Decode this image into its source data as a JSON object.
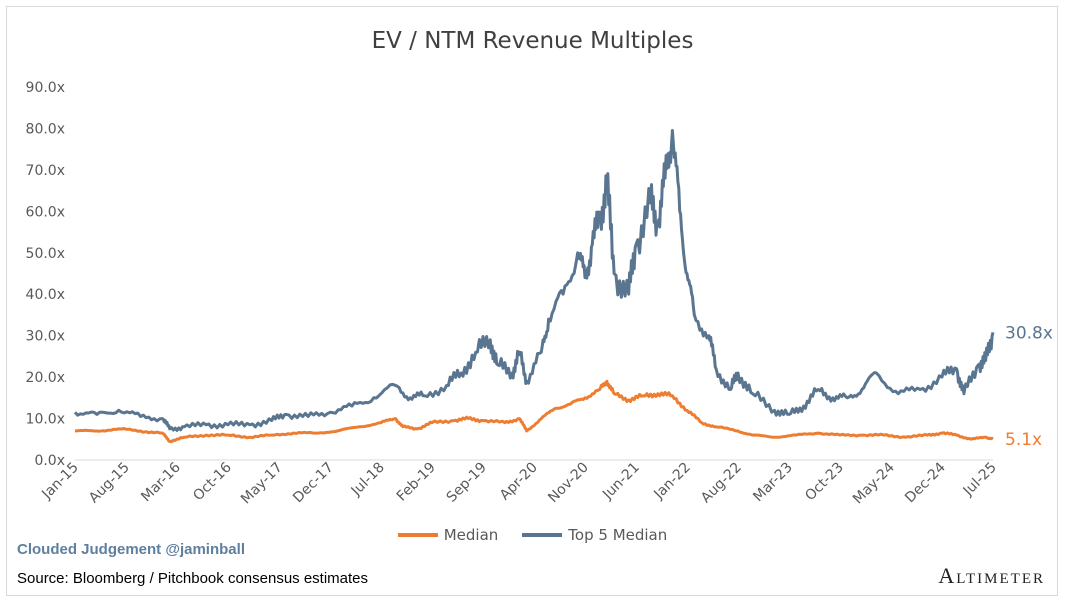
{
  "chart_data": {
    "type": "line",
    "title": "EV / NTM Revenue Multiples",
    "ylim": [
      0,
      90
    ],
    "yticks": [
      "0.0x",
      "10.0x",
      "20.0x",
      "30.0x",
      "40.0x",
      "50.0x",
      "60.0x",
      "70.0x",
      "80.0x",
      "90.0x"
    ],
    "xticks": [
      "Jan-15",
      "Aug-15",
      "Mar-16",
      "Oct-16",
      "May-17",
      "Dec-17",
      "Jul-18",
      "Feb-19",
      "Sep-19",
      "Apr-20",
      "Nov-20",
      "Jun-21",
      "Jan-22",
      "Aug-22",
      "Mar-23",
      "Oct-23",
      "May-24",
      "Dec-24",
      "Jul-25"
    ],
    "x_start": "Jan-15",
    "x_end": "Jul-25",
    "series": [
      {
        "name": "Median",
        "color": "#ed7d31",
        "end_label": "5.1x",
        "points": [
          [
            "2015-01",
            7.0
          ],
          [
            "2015-04",
            7.0
          ],
          [
            "2015-07",
            7.5
          ],
          [
            "2015-10",
            7.0
          ],
          [
            "2016-01",
            6.5
          ],
          [
            "2016-02",
            4.5
          ],
          [
            "2016-04",
            5.5
          ],
          [
            "2016-07",
            6.0
          ],
          [
            "2016-10",
            6.0
          ],
          [
            "2017-01",
            5.5
          ],
          [
            "2017-04",
            6.0
          ],
          [
            "2017-07",
            6.5
          ],
          [
            "2017-10",
            6.5
          ],
          [
            "2018-01",
            7.0
          ],
          [
            "2018-04",
            8.0
          ],
          [
            "2018-07",
            9.0
          ],
          [
            "2018-09",
            10.0
          ],
          [
            "2018-10",
            8.0
          ],
          [
            "2018-12",
            7.5
          ],
          [
            "2019-02",
            9.0
          ],
          [
            "2019-05",
            9.5
          ],
          [
            "2019-07",
            10.0
          ],
          [
            "2019-09",
            9.5
          ],
          [
            "2019-12",
            9.0
          ],
          [
            "2020-02",
            10.0
          ],
          [
            "2020-03",
            7.0
          ],
          [
            "2020-05",
            10.0
          ],
          [
            "2020-07",
            12.5
          ],
          [
            "2020-09",
            13.5
          ],
          [
            "2020-11",
            15.0
          ],
          [
            "2021-01",
            17.0
          ],
          [
            "2021-02",
            19.0
          ],
          [
            "2021-03",
            16.0
          ],
          [
            "2021-05",
            14.5
          ],
          [
            "2021-07",
            15.5
          ],
          [
            "2021-09",
            16.0
          ],
          [
            "2021-11",
            15.5
          ],
          [
            "2022-01",
            12.0
          ],
          [
            "2022-03",
            9.0
          ],
          [
            "2022-05",
            8.0
          ],
          [
            "2022-08",
            7.0
          ],
          [
            "2022-10",
            6.0
          ],
          [
            "2023-01",
            5.5
          ],
          [
            "2023-04",
            6.0
          ],
          [
            "2023-07",
            6.5
          ],
          [
            "2023-10",
            6.0
          ],
          [
            "2024-01",
            6.0
          ],
          [
            "2024-04",
            6.0
          ],
          [
            "2024-07",
            5.5
          ],
          [
            "2024-10",
            6.0
          ],
          [
            "2024-12",
            6.5
          ],
          [
            "2025-02",
            6.0
          ],
          [
            "2025-04",
            5.0
          ],
          [
            "2025-06",
            5.5
          ],
          [
            "2025-07",
            5.1
          ]
        ]
      },
      {
        "name": "Top 5 Median",
        "color": "#5a7590",
        "end_label": "30.8x",
        "points": [
          [
            "2015-01",
            11.5
          ],
          [
            "2015-04",
            11.0
          ],
          [
            "2015-07",
            12.0
          ],
          [
            "2015-10",
            10.5
          ],
          [
            "2016-01",
            10.0
          ],
          [
            "2016-02",
            7.5
          ],
          [
            "2016-04",
            8.0
          ],
          [
            "2016-07",
            8.5
          ],
          [
            "2016-10",
            8.5
          ],
          [
            "2017-01",
            8.5
          ],
          [
            "2017-04",
            9.5
          ],
          [
            "2017-06",
            11.0
          ],
          [
            "2017-09",
            10.5
          ],
          [
            "2017-12",
            11.5
          ],
          [
            "2018-03",
            13.0
          ],
          [
            "2018-06",
            15.0
          ],
          [
            "2018-09",
            18.0
          ],
          [
            "2018-11",
            15.0
          ],
          [
            "2019-01",
            15.5
          ],
          [
            "2019-04",
            18.0
          ],
          [
            "2019-06",
            21.0
          ],
          [
            "2019-08",
            26.0
          ],
          [
            "2019-10",
            29.0
          ],
          [
            "2019-11",
            23.0
          ],
          [
            "2020-01",
            21.0
          ],
          [
            "2020-02",
            26.0
          ],
          [
            "2020-03",
            19.0
          ],
          [
            "2020-05",
            26.0
          ],
          [
            "2020-06",
            34.0
          ],
          [
            "2020-08",
            40.0
          ],
          [
            "2020-10",
            50.0
          ],
          [
            "2020-11",
            44.0
          ],
          [
            "2020-12",
            52.0
          ],
          [
            "2021-01",
            58.0
          ],
          [
            "2021-02",
            67.0
          ],
          [
            "2021-03",
            45.0
          ],
          [
            "2021-05",
            40.0
          ],
          [
            "2021-06",
            52.0
          ],
          [
            "2021-08",
            62.0
          ],
          [
            "2021-09",
            57.0
          ],
          [
            "2021-10",
            68.0
          ],
          [
            "2021-11",
            79.5
          ],
          [
            "2021-12",
            60.0
          ],
          [
            "2022-01",
            45.0
          ],
          [
            "2022-02",
            35.0
          ],
          [
            "2022-04",
            30.0
          ],
          [
            "2022-05",
            22.0
          ],
          [
            "2022-07",
            17.0
          ],
          [
            "2022-08",
            21.0
          ],
          [
            "2022-10",
            16.0
          ],
          [
            "2023-01",
            12.0
          ],
          [
            "2023-03",
            11.0
          ],
          [
            "2023-05",
            13.0
          ],
          [
            "2023-07",
            17.0
          ],
          [
            "2023-09",
            15.0
          ],
          [
            "2023-11",
            15.0
          ],
          [
            "2024-01",
            17.0
          ],
          [
            "2024-03",
            21.0
          ],
          [
            "2024-06",
            16.0
          ],
          [
            "2024-09",
            17.0
          ],
          [
            "2024-12",
            20.0
          ],
          [
            "2025-02",
            22.0
          ],
          [
            "2025-03",
            16.0
          ],
          [
            "2025-05",
            23.0
          ],
          [
            "2025-06",
            24.0
          ],
          [
            "2025-07",
            30.8
          ]
        ]
      }
    ]
  },
  "legend": {
    "median": "Median",
    "top5": "Top 5 Median"
  },
  "footer": {
    "credit": "Clouded Judgement @jaminball",
    "source": "Source: Bloomberg / Pitchbook consensus estimates",
    "logo": "Altimeter"
  }
}
